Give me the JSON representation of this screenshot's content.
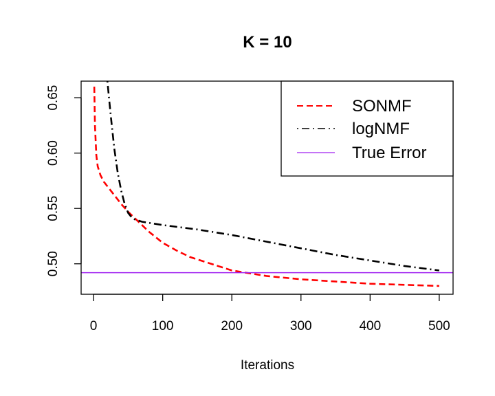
{
  "chart_data": {
    "type": "line",
    "title": "K = 10",
    "xlabel": "Iterations",
    "ylabel": "",
    "xlim": [
      -18,
      520
    ],
    "ylim": [
      0.4725,
      0.665
    ],
    "x_ticks": [
      0,
      100,
      200,
      300,
      400,
      500
    ],
    "x_tick_labels": [
      "0",
      "100",
      "200",
      "300",
      "400",
      "500"
    ],
    "y_ticks": [
      0.5,
      0.55,
      0.6,
      0.65
    ],
    "y_tick_labels": [
      "0.50",
      "0.55",
      "0.60",
      "0.65"
    ],
    "grid": false,
    "legend_position": "top-right",
    "series": [
      {
        "name": "SONMF",
        "color": "#ff0000",
        "style": "dashed",
        "x": [
          1,
          2,
          4,
          6,
          10,
          15,
          20,
          30,
          40,
          50,
          60,
          70,
          80,
          100,
          120,
          140,
          160,
          180,
          200,
          250,
          300,
          350,
          400,
          450,
          500
        ],
        "y": [
          0.66,
          0.625,
          0.598,
          0.588,
          0.58,
          0.574,
          0.57,
          0.562,
          0.554,
          0.547,
          0.541,
          0.535,
          0.529,
          0.519,
          0.512,
          0.506,
          0.502,
          0.498,
          0.494,
          0.489,
          0.486,
          0.484,
          0.482,
          0.481,
          0.48
        ]
      },
      {
        "name": "logNMF",
        "color": "#000000",
        "style": "dotdash",
        "x": [
          20,
          22,
          25,
          30,
          35,
          40,
          45,
          50,
          55,
          60,
          70,
          80,
          100,
          150,
          200,
          250,
          300,
          350,
          400,
          450,
          500
        ],
        "y": [
          0.665,
          0.652,
          0.633,
          0.604,
          0.582,
          0.566,
          0.554,
          0.546,
          0.542,
          0.54,
          0.538,
          0.537,
          0.535,
          0.531,
          0.526,
          0.52,
          0.514,
          0.508,
          0.503,
          0.498,
          0.494
        ]
      },
      {
        "name": "True Error",
        "color": "#a020f0",
        "style": "solid",
        "hline": 0.492
      }
    ]
  }
}
